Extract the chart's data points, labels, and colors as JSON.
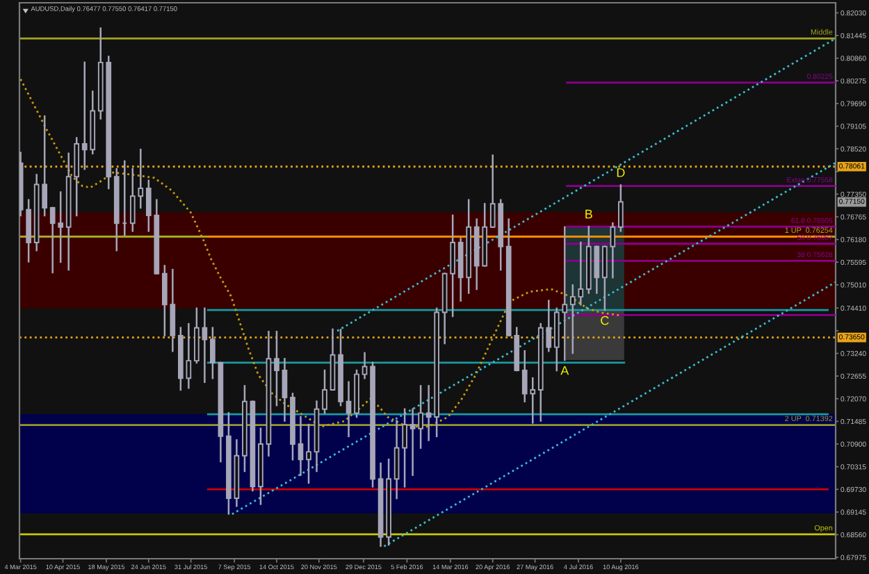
{
  "chart_data": {
    "type": "candlestick",
    "title": "AUDUSD,Daily 0.76477 0.77550 0.76417 0.77150",
    "color": "#a6a6b8",
    "x": [
      "2015-03-04",
      "2015-03-11",
      "2015-03-18",
      "2015-03-25",
      "2015-04-01",
      "2015-04-08",
      "2015-04-15",
      "2015-04-22",
      "2015-04-29",
      "2015-05-06",
      "2015-05-13",
      "2015-05-20",
      "2015-05-27",
      "2015-06-03",
      "2015-06-10",
      "2015-06-17",
      "2015-06-24",
      "2015-07-01",
      "2015-07-08",
      "2015-07-15",
      "2015-07-22",
      "2015-07-29",
      "2015-08-05",
      "2015-08-12",
      "2015-08-19",
      "2015-08-26",
      "2015-09-02",
      "2015-09-09",
      "2015-09-16",
      "2015-09-23",
      "2015-09-30",
      "2015-10-07",
      "2015-10-14",
      "2015-10-21",
      "2015-10-28",
      "2015-11-04",
      "2015-11-11",
      "2015-11-18",
      "2015-11-25",
      "2015-12-02",
      "2015-12-09",
      "2015-12-16",
      "2015-12-23",
      "2015-12-30",
      "2016-01-06",
      "2016-01-13",
      "2016-01-20",
      "2016-01-27",
      "2016-02-03",
      "2016-02-10",
      "2016-02-17",
      "2016-02-24",
      "2016-03-02",
      "2016-03-09",
      "2016-03-16",
      "2016-03-23",
      "2016-03-30",
      "2016-04-06",
      "2016-04-13",
      "2016-04-20",
      "2016-04-27",
      "2016-05-04",
      "2016-05-11",
      "2016-05-18",
      "2016-05-25",
      "2016-06-01",
      "2016-06-08",
      "2016-06-15",
      "2016-06-22",
      "2016-06-29",
      "2016-07-06",
      "2016-07-13",
      "2016-07-20",
      "2016-07-27",
      "2016-08-03",
      "2016-08-10"
    ],
    "ohlc": [
      [
        0.7815,
        0.7842,
        0.768,
        0.7695
      ],
      [
        0.7695,
        0.772,
        0.7561,
        0.761
      ],
      [
        0.761,
        0.7785,
        0.759,
        0.776
      ],
      [
        0.776,
        0.7936,
        0.768,
        0.77
      ],
      [
        0.77,
        0.77,
        0.7533,
        0.766
      ],
      [
        0.766,
        0.774,
        0.756,
        0.765
      ],
      [
        0.765,
        0.784,
        0.754,
        0.778
      ],
      [
        0.778,
        0.788,
        0.768,
        0.7865
      ],
      [
        0.7865,
        0.8075,
        0.78,
        0.785
      ],
      [
        0.785,
        0.8,
        0.784,
        0.795
      ],
      [
        0.795,
        0.8163,
        0.793,
        0.8075
      ],
      [
        0.8075,
        0.809,
        0.775,
        0.778
      ],
      [
        0.778,
        0.78,
        0.759,
        0.766
      ],
      [
        0.766,
        0.782,
        0.763,
        0.766
      ],
      [
        0.766,
        0.78,
        0.764,
        0.773
      ],
      [
        0.773,
        0.785,
        0.77,
        0.775
      ],
      [
        0.775,
        0.777,
        0.764,
        0.768
      ],
      [
        0.768,
        0.772,
        0.753,
        0.753
      ],
      [
        0.753,
        0.755,
        0.737,
        0.745
      ],
      [
        0.745,
        0.754,
        0.733,
        0.737
      ],
      [
        0.737,
        0.739,
        0.723,
        0.726
      ],
      [
        0.726,
        0.74,
        0.7235,
        0.7305
      ],
      [
        0.7305,
        0.744,
        0.73,
        0.739
      ],
      [
        0.739,
        0.744,
        0.725,
        0.736
      ],
      [
        0.736,
        0.739,
        0.726,
        0.73
      ],
      [
        0.73,
        0.73,
        0.7045,
        0.711
      ],
      [
        0.711,
        0.717,
        0.691,
        0.695
      ],
      [
        0.695,
        0.71,
        0.693,
        0.706
      ],
      [
        0.706,
        0.724,
        0.702,
        0.72
      ],
      [
        0.72,
        0.72,
        0.697,
        0.698
      ],
      [
        0.698,
        0.713,
        0.6935,
        0.709
      ],
      [
        0.709,
        0.738,
        0.706,
        0.731
      ],
      [
        0.731,
        0.738,
        0.719,
        0.728
      ],
      [
        0.728,
        0.731,
        0.715,
        0.721
      ],
      [
        0.721,
        0.722,
        0.705,
        0.709
      ],
      [
        0.709,
        0.716,
        0.701,
        0.705
      ],
      [
        0.705,
        0.714,
        0.699,
        0.707
      ],
      [
        0.707,
        0.72,
        0.702,
        0.718
      ],
      [
        0.718,
        0.728,
        0.717,
        0.723
      ],
      [
        0.723,
        0.7386,
        0.723,
        0.732
      ],
      [
        0.732,
        0.7385,
        0.719,
        0.72
      ],
      [
        0.72,
        0.725,
        0.711,
        0.717
      ],
      [
        0.717,
        0.728,
        0.716,
        0.727
      ],
      [
        0.727,
        0.7325,
        0.726,
        0.729
      ],
      [
        0.729,
        0.73,
        0.698,
        0.7
      ],
      [
        0.7,
        0.704,
        0.6827,
        0.685
      ],
      [
        0.685,
        0.705,
        0.683,
        0.7
      ],
      [
        0.7,
        0.715,
        0.695,
        0.708
      ],
      [
        0.708,
        0.718,
        0.698,
        0.714
      ],
      [
        0.714,
        0.718,
        0.701,
        0.713
      ],
      [
        0.713,
        0.724,
        0.708,
        0.717
      ],
      [
        0.717,
        0.724,
        0.71,
        0.716
      ],
      [
        0.716,
        0.744,
        0.711,
        0.743
      ],
      [
        0.743,
        0.753,
        0.735,
        0.753
      ],
      [
        0.753,
        0.768,
        0.742,
        0.761
      ],
      [
        0.761,
        0.762,
        0.746,
        0.752
      ],
      [
        0.752,
        0.772,
        0.748,
        0.765
      ],
      [
        0.765,
        0.767,
        0.749,
        0.755
      ],
      [
        0.755,
        0.771,
        0.755,
        0.765
      ],
      [
        0.765,
        0.7835,
        0.765,
        0.771
      ],
      [
        0.771,
        0.772,
        0.754,
        0.76
      ],
      [
        0.76,
        0.767,
        0.737,
        0.737
      ],
      [
        0.737,
        0.739,
        0.728,
        0.728
      ],
      [
        0.728,
        0.733,
        0.72,
        0.722
      ],
      [
        0.722,
        0.726,
        0.7145,
        0.723
      ],
      [
        0.723,
        0.74,
        0.715,
        0.739
      ],
      [
        0.739,
        0.746,
        0.733,
        0.734
      ],
      [
        0.734,
        0.744,
        0.728,
        0.743
      ],
      [
        0.743,
        0.765,
        0.7307,
        0.745
      ],
      [
        0.745,
        0.75,
        0.7325,
        0.747
      ],
      [
        0.747,
        0.761,
        0.745,
        0.749
      ],
      [
        0.749,
        0.7651,
        0.748,
        0.76
      ],
      [
        0.76,
        0.76,
        0.748,
        0.752
      ],
      [
        0.752,
        0.76,
        0.7436,
        0.76
      ],
      [
        0.76,
        0.766,
        0.752,
        0.765
      ],
      [
        0.765,
        0.7758,
        0.764,
        0.7715
      ]
    ],
    "bands": [
      {
        "axis": "y",
        "from": 0.744,
        "to": 0.7688,
        "color": "#3a0000"
      },
      {
        "axis": "y",
        "from": 0.6911,
        "to": 0.7167,
        "color": "#00004b"
      }
    ],
    "series": [
      {
        "type": "line",
        "x": [
          "2015-08-15",
          "2017-02-07"
        ],
        "values": [
          0.7167,
          0.7167
        ],
        "color": "#1c9aa0"
      },
      {
        "type": "line",
        "x": [
          "2015-08-15",
          "2017-02-07"
        ],
        "values": [
          0.7436,
          0.7436
        ],
        "color": "#1c9aa0"
      },
      {
        "type": "line",
        "x": [
          "2015-08-15",
          "2016-08-13"
        ],
        "values": [
          0.73,
          0.73
        ],
        "color": "#1c9aa0"
      },
      {
        "type": "line",
        "x": [
          "2015-08-15",
          "2017-02-07"
        ],
        "values": [
          0.6973,
          0.6973
        ],
        "color": "#d00000"
      },
      {
        "type": "line",
        "x": [
          "2015-08-15",
          "2017-02-07"
        ],
        "values": [
          0.76254,
          0.76254
        ],
        "color": "#ff8c00"
      },
      {
        "type": "line",
        "name": "0.80225",
        "x": [
          "2016-06-24",
          "2017-02-14"
        ],
        "values": [
          0.8023,
          0.8023
        ],
        "color": "#8b008b"
      },
      {
        "type": "line",
        "name": "Extan 0.77558",
        "x": [
          "2016-06-24",
          "2017-02-14"
        ],
        "values": [
          0.7756,
          0.7756
        ],
        "color": "#8b008b"
      },
      {
        "type": "line",
        "name": "61.8 0.76505",
        "x": [
          "2016-06-24",
          "2017-02-14"
        ],
        "values": [
          0.7651,
          0.7651
        ],
        "color": "#8b008b"
      },
      {
        "type": "line",
        "name": "50 0.76067",
        "x": [
          "2016-06-24",
          "2017-02-14"
        ],
        "values": [
          0.7607,
          0.7607
        ],
        "color": "#8b008b"
      },
      {
        "type": "line",
        "name": "38 0.75628",
        "x": [
          "2016-06-24",
          "2017-02-14"
        ],
        "values": [
          0.7563,
          0.7563
        ],
        "color": "#8b008b"
      },
      {
        "type": "line",
        "x": [
          "2016-06-24",
          "2017-02-14"
        ],
        "values": [
          0.7423,
          0.7423
        ],
        "color": "#8b008b"
      },
      {
        "type": "line",
        "x": [
          "2015-03-04",
          "2015-03-26",
          "2015-04-18",
          "2015-04-27",
          "2015-05-04",
          "2015-05-14",
          "2015-05-24",
          "2015-06-13",
          "2015-06-29",
          "2015-07-14",
          "2015-07-31",
          "2015-08-11",
          "2015-08-18",
          "2015-08-26",
          "2015-09-04",
          "2015-09-11",
          "2015-09-19",
          "2015-09-28",
          "2015-10-10",
          "2015-10-22",
          "2015-11-03",
          "2015-11-22",
          "2015-12-12",
          "2015-12-24",
          "2016-01-04",
          "2016-01-12",
          "2016-01-19",
          "2016-02-05",
          "2016-02-24",
          "2016-03-12",
          "2016-03-24",
          "2016-04-05",
          "2016-04-20",
          "2016-05-05",
          "2016-05-22",
          "2016-06-10",
          "2016-06-26",
          "2016-07-12",
          "2016-07-24",
          "2016-08-10"
        ],
        "values": [
          0.8032,
          0.7906,
          0.7781,
          0.7756,
          0.7752,
          0.777,
          0.7791,
          0.7784,
          0.7777,
          0.7745,
          0.7687,
          0.7616,
          0.7565,
          0.7519,
          0.7472,
          0.7411,
          0.7339,
          0.7268,
          0.7221,
          0.7192,
          0.7171,
          0.7135,
          0.7149,
          0.7178,
          0.7207,
          0.7185,
          0.716,
          0.7135,
          0.7135,
          0.716,
          0.7207,
          0.7268,
          0.7364,
          0.7458,
          0.7483,
          0.749,
          0.7472,
          0.744,
          0.7429,
          0.7422
        ],
        "color": "#c89b12",
        "line_style": "dotted"
      },
      {
        "type": "line",
        "x": [
          "2015-12-06",
          "2017-02-14"
        ],
        "values": [
          0.7382,
          0.8137
        ],
        "color": "#3cbcd0",
        "line_style": "dotted"
      },
      {
        "type": "line",
        "x": [
          "2015-09-05",
          "2017-02-14"
        ],
        "values": [
          0.6909,
          0.7816
        ],
        "color": "#3cbcd0",
        "line_style": "dotted"
      },
      {
        "type": "line",
        "x": [
          "2016-01-16",
          "2017-02-14"
        ],
        "values": [
          0.6826,
          0.7508
        ],
        "color": "#3cbcd0",
        "line_style": "dotted"
      }
    ],
    "ref_lines": [
      {
        "axis": "y",
        "value": 0.8137,
        "label": "Middle",
        "color": "#a3a31f"
      },
      {
        "axis": "y",
        "value": 0.78061,
        "label": "0.78061",
        "color": "#e8a317",
        "line_style": "dotted"
      },
      {
        "axis": "y",
        "value": 0.76254,
        "label": "1 UP  0.76254",
        "color": "#a8a820"
      },
      {
        "axis": "y",
        "value": 0.7365,
        "label": "0.73650",
        "color": "#e8a317",
        "line_style": "dotted"
      },
      {
        "axis": "y",
        "value": 0.71392,
        "label": "2 UP  0.71392",
        "color": "#9a9a2a"
      },
      {
        "axis": "y",
        "value": 0.6857,
        "label": "Open",
        "color": "#c8c800"
      }
    ],
    "annotations": [
      {
        "text": "A",
        "x": "2016-06-22",
        "y": 0.7307
      },
      {
        "text": "B",
        "x": "2016-07-13",
        "y": 0.7651
      },
      {
        "text": "C",
        "x": "2016-07-27",
        "y": 0.7436
      },
      {
        "text": "D",
        "x": "2016-08-10",
        "y": 0.7758
      },
      {
        "text": "0.77150",
        "y": 0.7715
      }
    ],
    "xlim": [
      "2015-03-03",
      "2017-02-14"
    ],
    "xticks": [
      {
        "value": "2015-03-04",
        "label": "4 Mar 2015"
      },
      {
        "value": "2015-04-10",
        "label": "10 Apr 2015"
      },
      {
        "value": "2015-05-18",
        "label": "18 May 2015"
      },
      {
        "value": "2015-06-24",
        "label": "24 Jun 2015"
      },
      {
        "value": "2015-07-31",
        "label": "31 Jul 2015"
      },
      {
        "value": "2015-09-07",
        "label": "7 Sep 2015"
      },
      {
        "value": "2015-10-14",
        "label": "14 Oct 2015"
      },
      {
        "value": "2015-11-20",
        "label": "20 Nov 2015"
      },
      {
        "value": "2015-12-29",
        "label": "29 Dec 2015"
      },
      {
        "value": "2016-02-05",
        "label": "5 Feb 2016"
      },
      {
        "value": "2016-03-14",
        "label": "14 Mar 2016"
      },
      {
        "value": "2016-04-20",
        "label": "20 Apr 2016"
      },
      {
        "value": "2016-05-27",
        "label": "27 May 2016"
      },
      {
        "value": "2016-07-04",
        "label": "4 Jul 2016"
      },
      {
        "value": "2016-08-10",
        "label": "10 Aug 2016"
      }
    ],
    "ylim": [
      0.6794,
      0.8229
    ],
    "yticks": [
      {
        "value": 0.8203,
        "label": "0.82030"
      },
      0.81445,
      {
        "value": 0.8086,
        "label": "0.80860"
      },
      0.80275,
      {
        "value": 0.7969,
        "label": "0.79690"
      },
      0.79105,
      {
        "value": 0.7852,
        "label": "0.78520"
      },
      {
        "value": 0.77935,
        "label": null
      },
      {
        "value": 0.7735,
        "label": "0.77350"
      },
      0.76765,
      {
        "value": 0.7618,
        "label": "0.76180"
      },
      0.75595,
      {
        "value": 0.7501,
        "label": "0.75010"
      },
      {
        "value": 0.7441,
        "label": "0.74410"
      },
      {
        "value": 0.73825,
        "label": null
      },
      {
        "value": 0.7324,
        "label": "0.73240"
      },
      0.72655,
      {
        "value": 0.7207,
        "label": "0.72070"
      },
      0.71485,
      {
        "value": 0.709,
        "label": "0.70900"
      },
      0.70315,
      {
        "value": 0.6973,
        "label": "0.69730"
      },
      0.69145,
      {
        "value": 0.6856,
        "label": "0.68560"
      },
      0.67975
    ]
  }
}
